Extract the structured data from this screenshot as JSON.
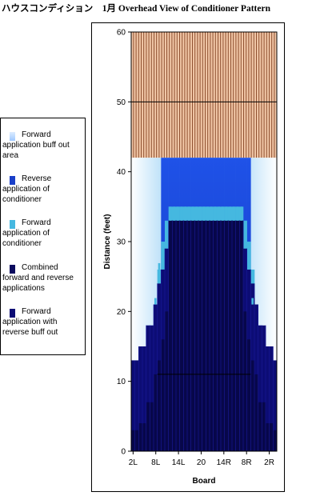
{
  "chart_data": {
    "type": "area",
    "title": "ハウスコンディション　1月 Overhead View of Conditioner Pattern",
    "xlabel": "Board",
    "ylabel": "Distance (feet)",
    "ylim": [
      0,
      60
    ],
    "yticks": [
      0,
      10,
      20,
      30,
      40,
      50,
      60
    ],
    "xticks": [
      "2L",
      "8L",
      "14L",
      "20",
      "14R",
      "8R",
      "2R"
    ],
    "boards": 39,
    "grid": "horizontal line at 50",
    "legend_position": "left",
    "series": [
      {
        "name": "Forward application buff out area",
        "color": "#dcecff"
      },
      {
        "name": "Reverse application of conditioner",
        "color": "#1a3fc8"
      },
      {
        "name": "Forward application of conditioner",
        "color": "#45b8e0"
      },
      {
        "name": "Combined forward and reverse applications",
        "color": "#0b0b5e"
      },
      {
        "name": "Forward application with reverse buff out",
        "color": "#0c0c75"
      }
    ],
    "regions": {
      "lane_oil_end_ft": 42,
      "pindeck_start_ft": 42,
      "forward_buff_profile": [
        42,
        42,
        42,
        42,
        42,
        42,
        42,
        42,
        42,
        42,
        42,
        42,
        42,
        42,
        42,
        42,
        42,
        42,
        42,
        42,
        42,
        42,
        42,
        42,
        42,
        42,
        42,
        42,
        42,
        42,
        42,
        42,
        42,
        42,
        42,
        42,
        42,
        42,
        42
      ],
      "reverse_profile": [
        13,
        13,
        15,
        15,
        18,
        18,
        21,
        24,
        42,
        42,
        42,
        42,
        42,
        42,
        42,
        42,
        42,
        42,
        42,
        42,
        42,
        42,
        42,
        42,
        42,
        42,
        42,
        42,
        42,
        42,
        42,
        42,
        21,
        18,
        18,
        15,
        15,
        13,
        13
      ],
      "forward_conditioner_profile": [
        0,
        0,
        0,
        0,
        0,
        0,
        21,
        26,
        30,
        33,
        35,
        35,
        35,
        35,
        35,
        35,
        35,
        35,
        35,
        35,
        35,
        35,
        35,
        35,
        35,
        35,
        35,
        35,
        35,
        35,
        33,
        30,
        26,
        21,
        0,
        0,
        0,
        0,
        0
      ],
      "combined_profile": [
        3,
        3,
        4,
        4,
        7,
        7,
        11,
        13,
        16,
        20,
        33,
        33,
        33,
        33,
        33,
        33,
        33,
        33,
        33,
        33,
        33,
        33,
        33,
        33,
        33,
        33,
        33,
        33,
        33,
        33,
        20,
        16,
        13,
        11,
        7,
        7,
        4,
        4,
        3
      ],
      "buffout_profile": [
        13,
        13,
        15,
        15,
        18,
        18,
        21,
        24,
        26,
        29,
        33,
        33,
        33,
        33,
        33,
        33,
        33,
        33,
        33,
        33,
        33,
        33,
        33,
        33,
        33,
        33,
        33,
        33,
        33,
        33,
        29,
        26,
        24,
        21,
        18,
        18,
        15,
        15,
        13
      ],
      "dots_row_ft": [
        33,
        35
      ],
      "marker_line_ft": 11
    }
  }
}
